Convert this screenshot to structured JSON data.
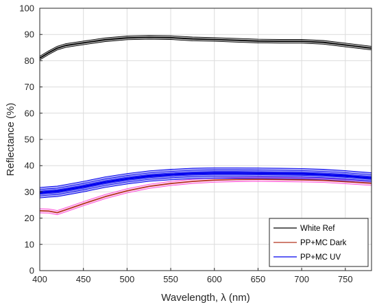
{
  "chart_data": {
    "type": "line",
    "title": "",
    "xlabel": "Wavelength, λ (nm)",
    "ylabel": "Reflectance (%)",
    "xlim": [
      400,
      780
    ],
    "ylim": [
      0,
      100
    ],
    "xticks": [
      400,
      450,
      500,
      550,
      600,
      650,
      700,
      750
    ],
    "yticks": [
      0,
      10,
      20,
      30,
      40,
      50,
      60,
      70,
      80,
      90,
      100
    ],
    "grid": true,
    "legend_position": "bottom-right",
    "x": [
      400,
      410,
      420,
      430,
      450,
      475,
      500,
      525,
      550,
      575,
      600,
      625,
      650,
      675,
      700,
      725,
      750,
      780
    ],
    "series": [
      {
        "name": "White Ref",
        "color": "#000000",
        "values": [
          81.0,
          83.0,
          84.8,
          85.8,
          86.8,
          88.0,
          88.7,
          88.9,
          88.8,
          88.3,
          88.1,
          87.8,
          87.5,
          87.4,
          87.4,
          87.0,
          86.0,
          84.8
        ],
        "band": 0.7
      },
      {
        "name": "PP+MC Dark",
        "color": "#b5351f",
        "band_color": "#ff4fd8",
        "values": [
          22.8,
          22.7,
          22.1,
          23.2,
          25.5,
          28.2,
          30.4,
          32.1,
          33.2,
          34.0,
          34.5,
          34.7,
          34.8,
          34.7,
          34.6,
          34.4,
          33.9,
          33.3
        ],
        "band": 0.8
      },
      {
        "name": "PP+MC UV",
        "color": "#0000ee",
        "values": [
          29.7,
          30.0,
          30.2,
          30.8,
          32.0,
          33.7,
          35.0,
          36.0,
          36.6,
          37.0,
          37.2,
          37.2,
          37.1,
          37.0,
          36.9,
          36.6,
          36.1,
          35.3
        ],
        "band": 2.0
      }
    ]
  }
}
